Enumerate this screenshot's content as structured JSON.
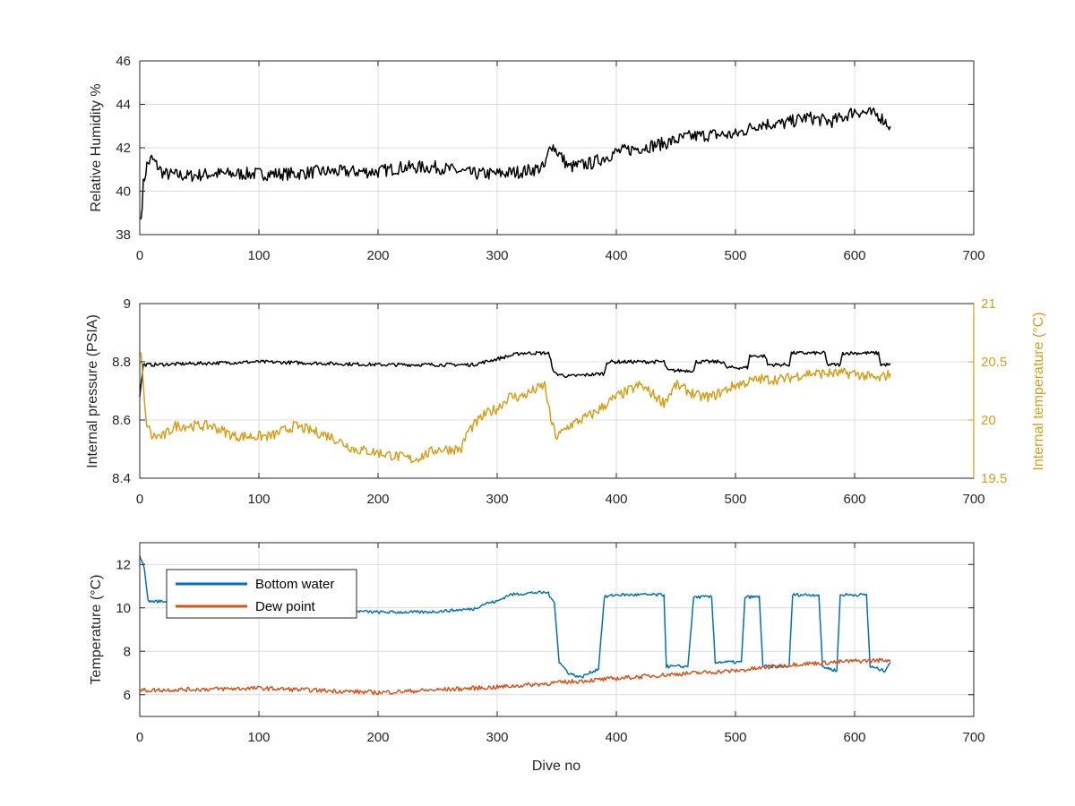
{
  "chart_data": [
    {
      "type": "line",
      "ylabel": "Relative Humidity %",
      "xlim": [
        0,
        700
      ],
      "ylim": [
        38,
        46
      ],
      "xticks": [
        "0",
        "100",
        "200",
        "300",
        "400",
        "500",
        "600",
        "700"
      ],
      "yticks": [
        "38",
        "40",
        "42",
        "44",
        "46"
      ],
      "grid": true,
      "series": [
        {
          "color": "#000000",
          "noise": 0.3,
          "points": [
            [
              1,
              38.7
            ],
            [
              3,
              40.3
            ],
            [
              6,
              41.2
            ],
            [
              10,
              41.5
            ],
            [
              20,
              40.8
            ],
            [
              40,
              40.7
            ],
            [
              60,
              40.8
            ],
            [
              80,
              40.8
            ],
            [
              100,
              40.8
            ],
            [
              130,
              40.8
            ],
            [
              150,
              40.9
            ],
            [
              180,
              40.9
            ],
            [
              200,
              40.9
            ],
            [
              220,
              41.1
            ],
            [
              250,
              41.1
            ],
            [
              280,
              40.8
            ],
            [
              300,
              40.8
            ],
            [
              320,
              40.9
            ],
            [
              340,
              41.1
            ],
            [
              345,
              42.2
            ],
            [
              355,
              41.5
            ],
            [
              360,
              41.1
            ],
            [
              380,
              41.3
            ],
            [
              400,
              41.8
            ],
            [
              420,
              42.0
            ],
            [
              440,
              42.2
            ],
            [
              460,
              42.5
            ],
            [
              480,
              42.6
            ],
            [
              500,
              42.6
            ],
            [
              520,
              43.1
            ],
            [
              540,
              43.1
            ],
            [
              560,
              43.4
            ],
            [
              580,
              43.2
            ],
            [
              590,
              43.4
            ],
            [
              600,
              43.7
            ],
            [
              610,
              43.6
            ],
            [
              620,
              43.5
            ],
            [
              630,
              43.0
            ]
          ]
        }
      ]
    },
    {
      "type": "line",
      "ylabel": "Internal pressure (PSIA)",
      "y2label": "Internal temperature (°C)",
      "xlim": [
        0,
        700
      ],
      "ylim": [
        8.4,
        9.0
      ],
      "y2lim": [
        19.5,
        21.0
      ],
      "xticks": [
        "0",
        "100",
        "200",
        "300",
        "400",
        "500",
        "600",
        "700"
      ],
      "yticks": [
        "8.4",
        "8.6",
        "8.8",
        "9"
      ],
      "y2ticks": [
        "19.5",
        "20",
        "20.5",
        "21"
      ],
      "grid": true,
      "series": [
        {
          "color": "#000000",
          "axis": "left",
          "noise": 0.006,
          "points": [
            [
              0,
              8.68
            ],
            [
              3,
              8.79
            ],
            [
              10,
              8.79
            ],
            [
              100,
              8.8
            ],
            [
              200,
              8.79
            ],
            [
              280,
              8.79
            ],
            [
              300,
              8.81
            ],
            [
              320,
              8.83
            ],
            [
              343,
              8.83
            ],
            [
              348,
              8.76
            ],
            [
              360,
              8.75
            ],
            [
              390,
              8.76
            ],
            [
              392,
              8.8
            ],
            [
              440,
              8.8
            ],
            [
              443,
              8.77
            ],
            [
              465,
              8.77
            ],
            [
              467,
              8.8
            ],
            [
              490,
              8.8
            ],
            [
              492,
              8.78
            ],
            [
              510,
              8.78
            ],
            [
              512,
              8.82
            ],
            [
              525,
              8.82
            ],
            [
              527,
              8.79
            ],
            [
              545,
              8.79
            ],
            [
              547,
              8.83
            ],
            [
              575,
              8.83
            ],
            [
              577,
              8.79
            ],
            [
              588,
              8.79
            ],
            [
              590,
              8.83
            ],
            [
              620,
              8.83
            ],
            [
              622,
              8.79
            ],
            [
              630,
              8.79
            ]
          ]
        },
        {
          "color": "#D79E17",
          "axis": "right",
          "noise": 0.045,
          "points": [
            [
              1,
              20.58
            ],
            [
              5,
              20.0
            ],
            [
              10,
              19.86
            ],
            [
              20,
              19.86
            ],
            [
              30,
              19.95
            ],
            [
              60,
              19.95
            ],
            [
              80,
              19.86
            ],
            [
              110,
              19.86
            ],
            [
              130,
              19.95
            ],
            [
              160,
              19.86
            ],
            [
              180,
              19.75
            ],
            [
              200,
              19.72
            ],
            [
              230,
              19.66
            ],
            [
              250,
              19.75
            ],
            [
              270,
              19.75
            ],
            [
              275,
              19.9
            ],
            [
              280,
              19.95
            ],
            [
              290,
              20.05
            ],
            [
              300,
              20.1
            ],
            [
              310,
              20.2
            ],
            [
              320,
              20.2
            ],
            [
              340,
              20.3
            ],
            [
              345,
              20.0
            ],
            [
              350,
              19.85
            ],
            [
              360,
              19.95
            ],
            [
              380,
              20.05
            ],
            [
              400,
              20.2
            ],
            [
              420,
              20.3
            ],
            [
              440,
              20.15
            ],
            [
              450,
              20.3
            ],
            [
              470,
              20.2
            ],
            [
              480,
              20.2
            ],
            [
              500,
              20.3
            ],
            [
              520,
              20.35
            ],
            [
              540,
              20.35
            ],
            [
              560,
              20.4
            ],
            [
              580,
              20.4
            ],
            [
              600,
              20.4
            ],
            [
              620,
              20.35
            ],
            [
              630,
              20.4
            ]
          ]
        }
      ]
    },
    {
      "type": "line",
      "ylabel": "Temperature (°C)",
      "xlabel": "Dive no",
      "xlim": [
        0,
        700
      ],
      "ylim": [
        5,
        13
      ],
      "xticks": [
        "0",
        "100",
        "200",
        "300",
        "400",
        "500",
        "600",
        "700"
      ],
      "yticks": [
        "6",
        "8",
        "10",
        "12"
      ],
      "grid": true,
      "legend": "top-left",
      "series": [
        {
          "name": "Bottom water",
          "color": "#0072BD",
          "noise": 0.07,
          "points": [
            [
              0,
              12.4
            ],
            [
              4,
              11.8
            ],
            [
              7,
              10.3
            ],
            [
              20,
              10.3
            ],
            [
              40,
              10.2
            ],
            [
              60,
              10.1
            ],
            [
              80,
              10.2
            ],
            [
              100,
              10.1
            ],
            [
              150,
              10.0
            ],
            [
              180,
              9.85
            ],
            [
              200,
              9.8
            ],
            [
              240,
              9.8
            ],
            [
              280,
              9.95
            ],
            [
              290,
              10.2
            ],
            [
              300,
              10.3
            ],
            [
              310,
              10.6
            ],
            [
              330,
              10.7
            ],
            [
              343,
              10.7
            ],
            [
              345,
              10.4
            ],
            [
              348,
              10.3
            ],
            [
              352,
              7.5
            ],
            [
              360,
              7.0
            ],
            [
              370,
              6.8
            ],
            [
              385,
              7.2
            ],
            [
              390,
              10.5
            ],
            [
              400,
              10.6
            ],
            [
              440,
              10.6
            ],
            [
              442,
              7.3
            ],
            [
              460,
              7.3
            ],
            [
              465,
              10.5
            ],
            [
              480,
              10.5
            ],
            [
              483,
              7.5
            ],
            [
              505,
              7.5
            ],
            [
              508,
              10.5
            ],
            [
              520,
              10.5
            ],
            [
              523,
              7.3
            ],
            [
              545,
              7.3
            ],
            [
              548,
              10.6
            ],
            [
              570,
              10.6
            ],
            [
              573,
              7.3
            ],
            [
              585,
              7.1
            ],
            [
              588,
              10.6
            ],
            [
              610,
              10.6
            ],
            [
              613,
              7.3
            ],
            [
              625,
              7.1
            ],
            [
              630,
              7.5
            ]
          ]
        },
        {
          "name": "Dew point",
          "color": "#D95319",
          "noise": 0.1,
          "points": [
            [
              0,
              6.2
            ],
            [
              100,
              6.3
            ],
            [
              200,
              6.1
            ],
            [
              300,
              6.35
            ],
            [
              350,
              6.55
            ],
            [
              400,
              6.75
            ],
            [
              450,
              6.95
            ],
            [
              500,
              7.1
            ],
            [
              550,
              7.4
            ],
            [
              600,
              7.55
            ],
            [
              630,
              7.6
            ]
          ]
        }
      ]
    }
  ]
}
